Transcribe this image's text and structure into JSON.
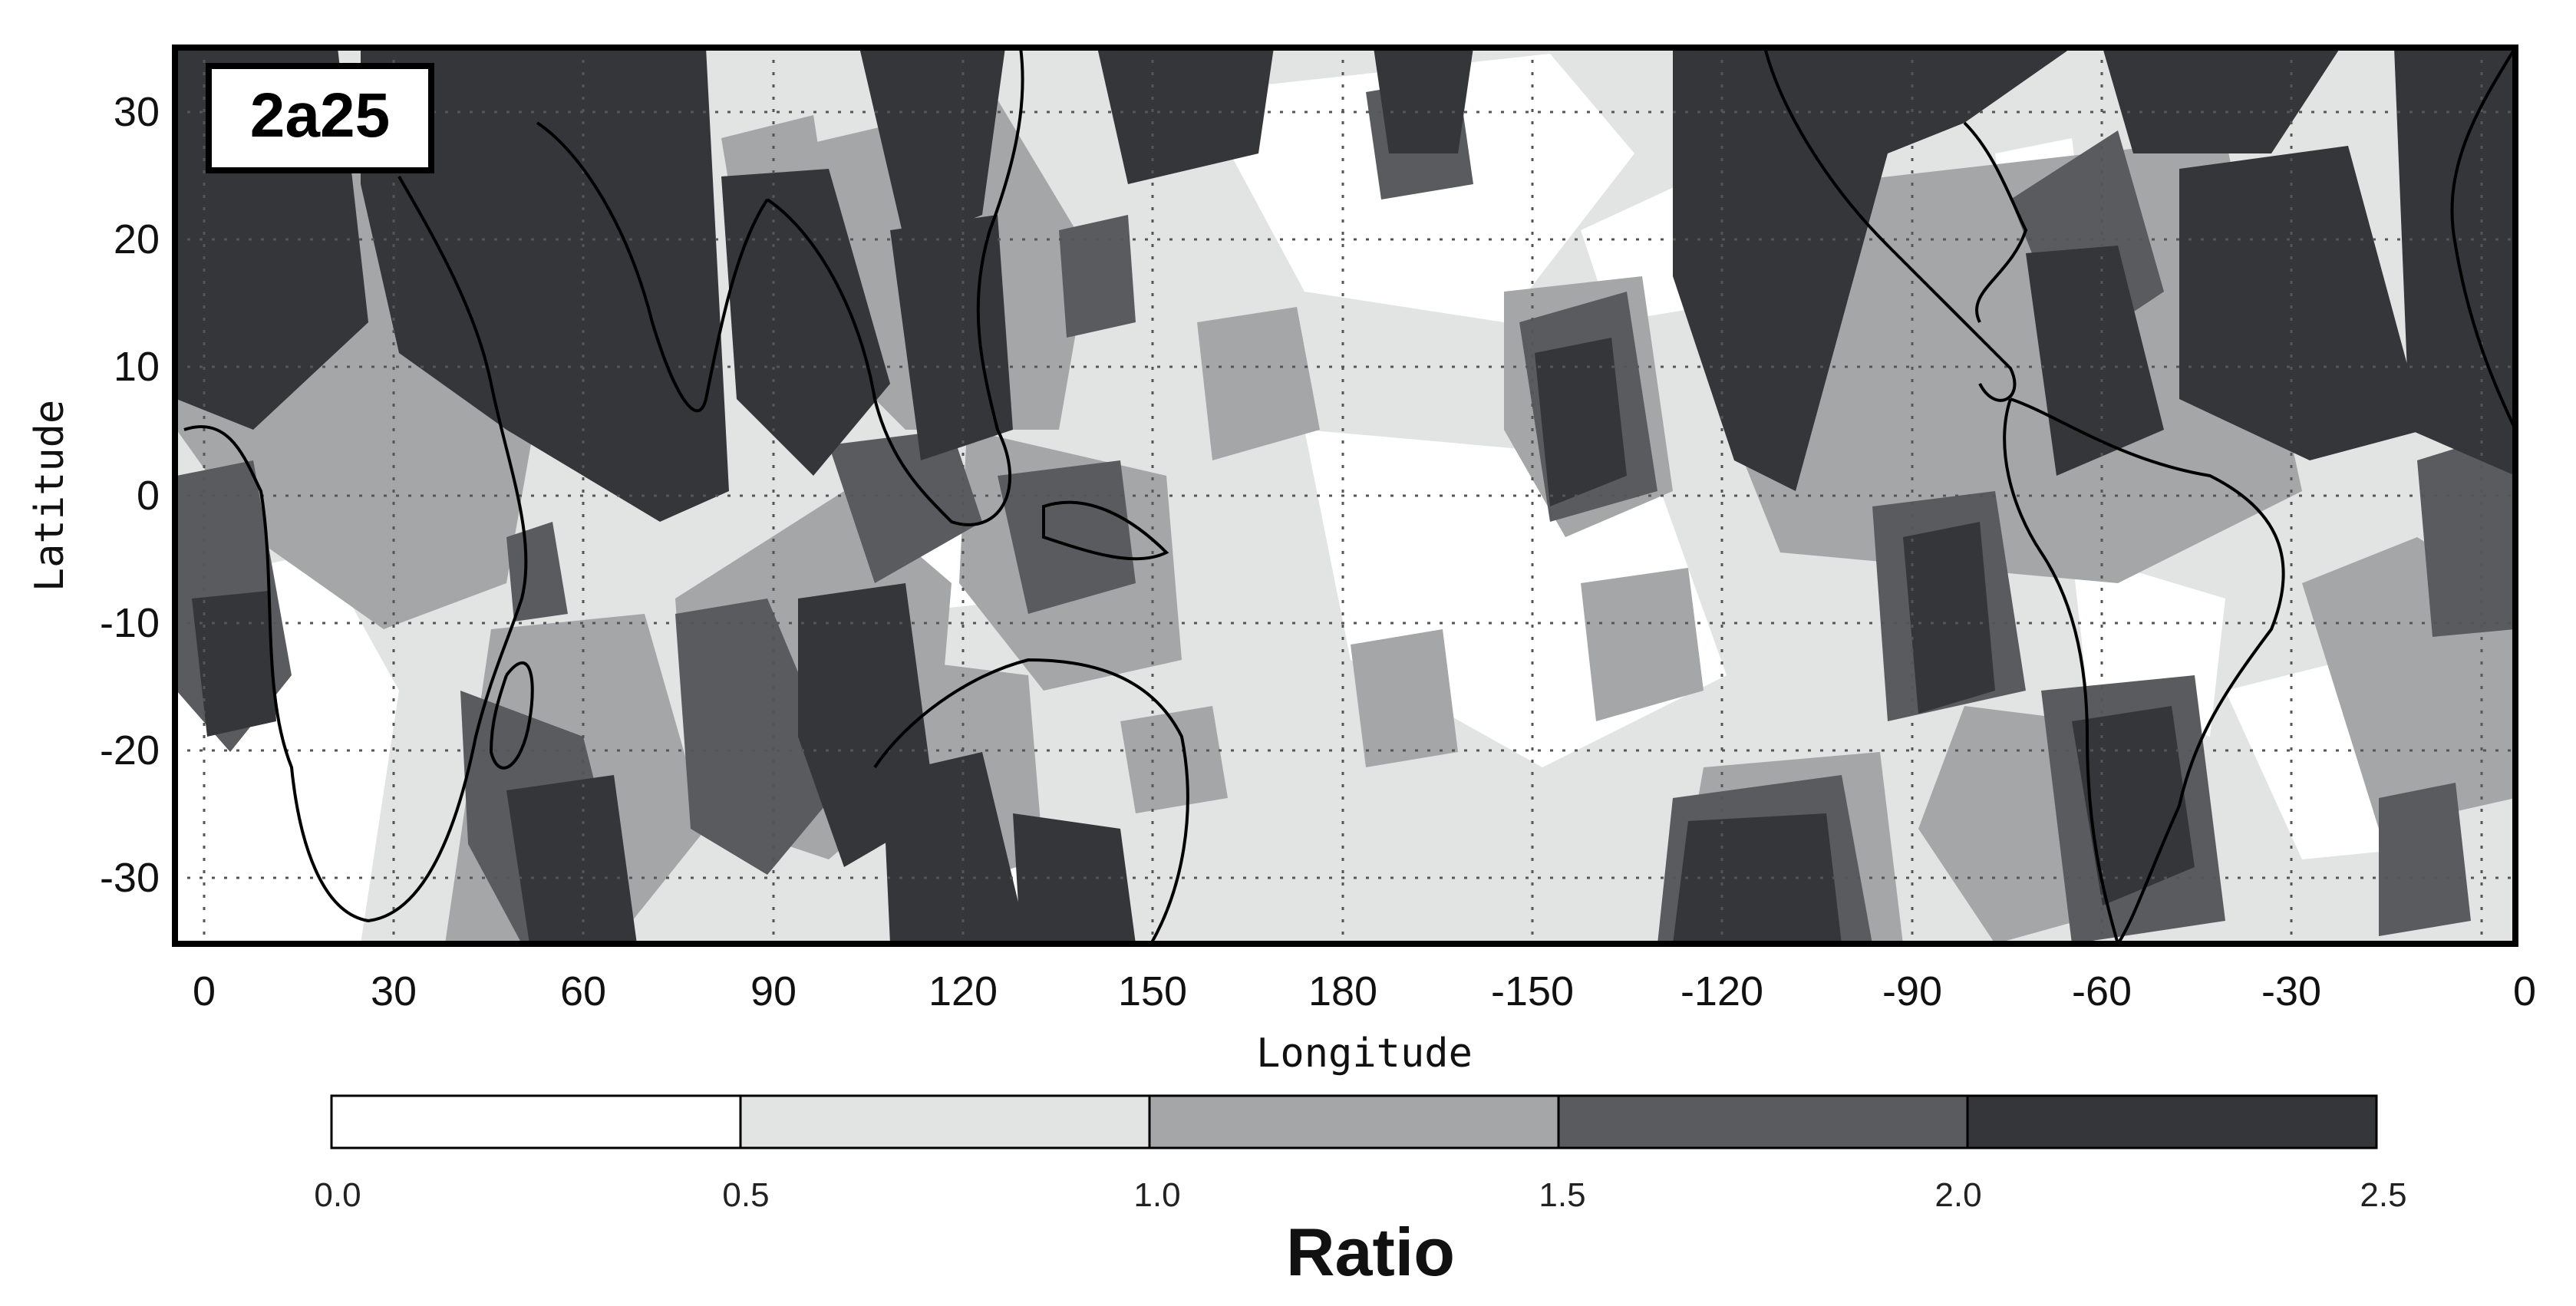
{
  "chart_data": {
    "type": "heatmap",
    "title": "2a25",
    "xlabel": "Longitude",
    "ylabel": "Latitude",
    "x_ticks": [
      "0",
      "30",
      "60",
      "90",
      "120",
      "150",
      "180",
      "-150",
      "-120",
      "-90",
      "-60",
      "-30",
      "0"
    ],
    "y_ticks": [
      "30",
      "20",
      "10",
      "0",
      "-10",
      "-20",
      "-30"
    ],
    "xlim": [
      0,
      360
    ],
    "ylim": [
      -35,
      35
    ],
    "grid": true,
    "colorbar": {
      "title": "Ratio",
      "ticks": [
        "0.0",
        "0.5",
        "1.0",
        "1.5",
        "2.0",
        "2.5"
      ],
      "bins": [
        {
          "range": [
            0.0,
            0.5
          ],
          "color": "#ffffff"
        },
        {
          "range": [
            0.5,
            1.0
          ],
          "color": "#e2e3e3"
        },
        {
          "range": [
            1.0,
            1.5
          ],
          "color": "#a5a6a7"
        },
        {
          "range": [
            1.5,
            2.0
          ],
          "color": "#595b5e"
        },
        {
          "range": [
            2.0,
            2.5
          ],
          "color": "#35363a"
        }
      ]
    },
    "colors": {
      "very_low": "#ffffff",
      "low": "#e2e3e3",
      "mid": "#a5a6a7",
      "high": "#595b5e",
      "very_high": "#35363a"
    }
  }
}
